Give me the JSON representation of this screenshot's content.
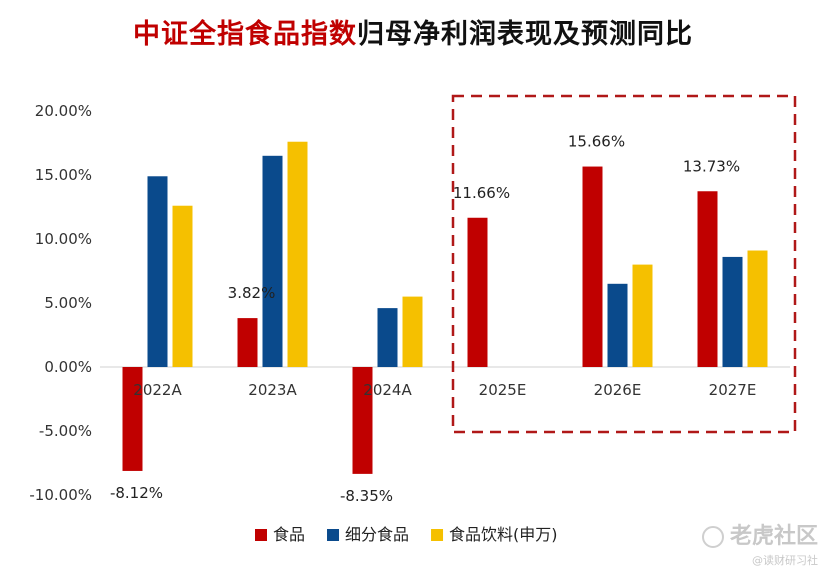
{
  "title": {
    "highlight": "中证全指食品指数",
    "rest": "归母净利润表现及预测同比"
  },
  "colors": {
    "食品": "#c00000",
    "细分食品": "#0a4a8c",
    "食品饮料(申万)": "#f5c000",
    "frame": "#b01818"
  },
  "watermark": {
    "main": "老虎社区",
    "sub": "@读财研习社"
  },
  "chart_data": {
    "type": "bar",
    "categories": [
      "2022A",
      "2023A",
      "2024A",
      "2025E",
      "2026E",
      "2027E"
    ],
    "series": [
      {
        "name": "食品",
        "values": [
          -8.12,
          3.82,
          -8.35,
          11.66,
          15.66,
          13.73
        ]
      },
      {
        "name": "细分食品",
        "values": [
          14.9,
          16.5,
          4.6,
          null,
          6.5,
          8.6
        ]
      },
      {
        "name": "食品饮料(申万)",
        "values": [
          12.6,
          17.6,
          5.5,
          null,
          8.0,
          9.1
        ]
      }
    ],
    "data_labels": {
      "食品": [
        "-8.12%",
        "3.82%",
        "-8.35%",
        "11.66%",
        "15.66%",
        "13.73%"
      ]
    },
    "y_ticks": [
      "-10.00%",
      "-5.00%",
      "0.00%",
      "5.00%",
      "10.00%",
      "15.00%",
      "20.00%"
    ],
    "ylim": [
      -10,
      20
    ],
    "grid": false,
    "legend": {
      "position": "bottom",
      "entries": [
        "食品",
        "细分食品",
        "食品饮料(申万)"
      ]
    },
    "highlight_box": {
      "categories": [
        "2025E",
        "2026E",
        "2027E"
      ],
      "style": "dashed"
    }
  }
}
